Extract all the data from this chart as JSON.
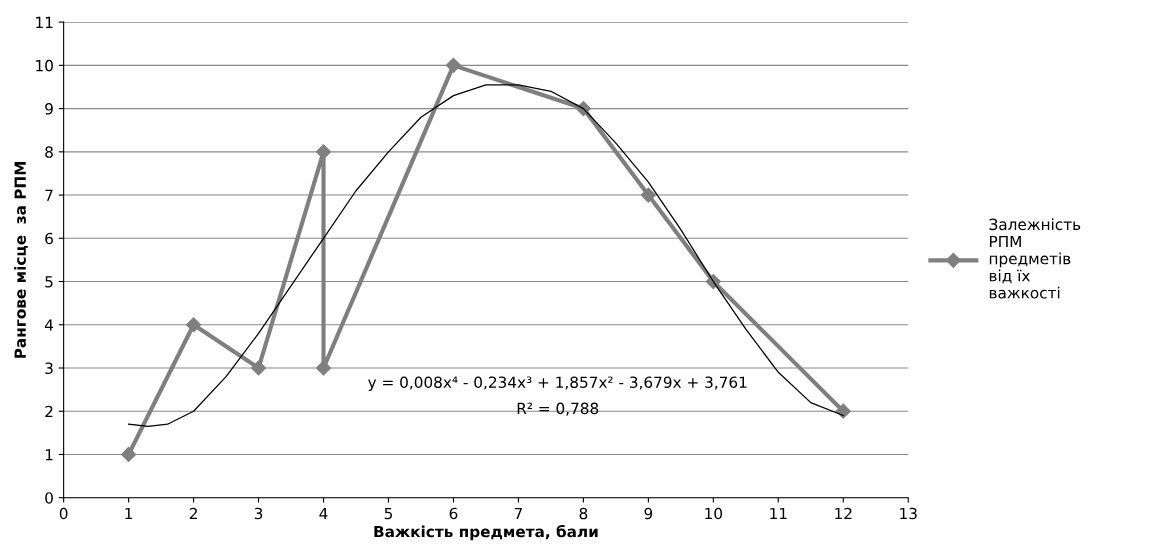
{
  "chart_data": {
    "type": "line",
    "xlabel": "Важкість предмета, бали",
    "ylabel": "Рангове місце  за РПМ",
    "series": [
      {
        "name": "Залежність РПМ предметів від їх важкості",
        "color": "#7f7f7f",
        "marker": "diamond",
        "x": [
          1,
          2,
          3,
          4,
          4,
          6,
          8,
          9,
          10,
          12
        ],
        "values": [
          1,
          4,
          3,
          8,
          3,
          10,
          9,
          7,
          5,
          2
        ]
      },
      {
        "type": "line",
        "color": "#000000",
        "marker": "none",
        "x": [
          1,
          1.3,
          1.6,
          2,
          2.5,
          3,
          3.5,
          4,
          4.5,
          5,
          5.5,
          6,
          6.5,
          7,
          7.5,
          8,
          8.5,
          9,
          9.5,
          10,
          10.5,
          11,
          11.5,
          12
        ],
        "values": [
          1.7,
          1.65,
          1.7,
          2.0,
          2.8,
          3.8,
          4.9,
          6.0,
          7.1,
          8.0,
          8.8,
          9.3,
          9.55,
          9.55,
          9.4,
          9.0,
          8.2,
          7.3,
          6.2,
          5.0,
          3.9,
          2.9,
          2.2,
          1.9
        ]
      }
    ],
    "xlim": [
      0,
      13
    ],
    "xticks": [
      0,
      1,
      2,
      3,
      4,
      5,
      6,
      7,
      8,
      9,
      10,
      11,
      12,
      13
    ],
    "ylim": [
      0,
      11
    ],
    "yticks": [
      0,
      1,
      2,
      3,
      4,
      5,
      6,
      7,
      8,
      9,
      10,
      11
    ],
    "grid": "y",
    "legend": "right",
    "annotations": [
      "y = 0,008x⁴ - 0,234x³ + 1,857x² - 3,679x + 3,761",
      "R² = 0,788"
    ]
  }
}
